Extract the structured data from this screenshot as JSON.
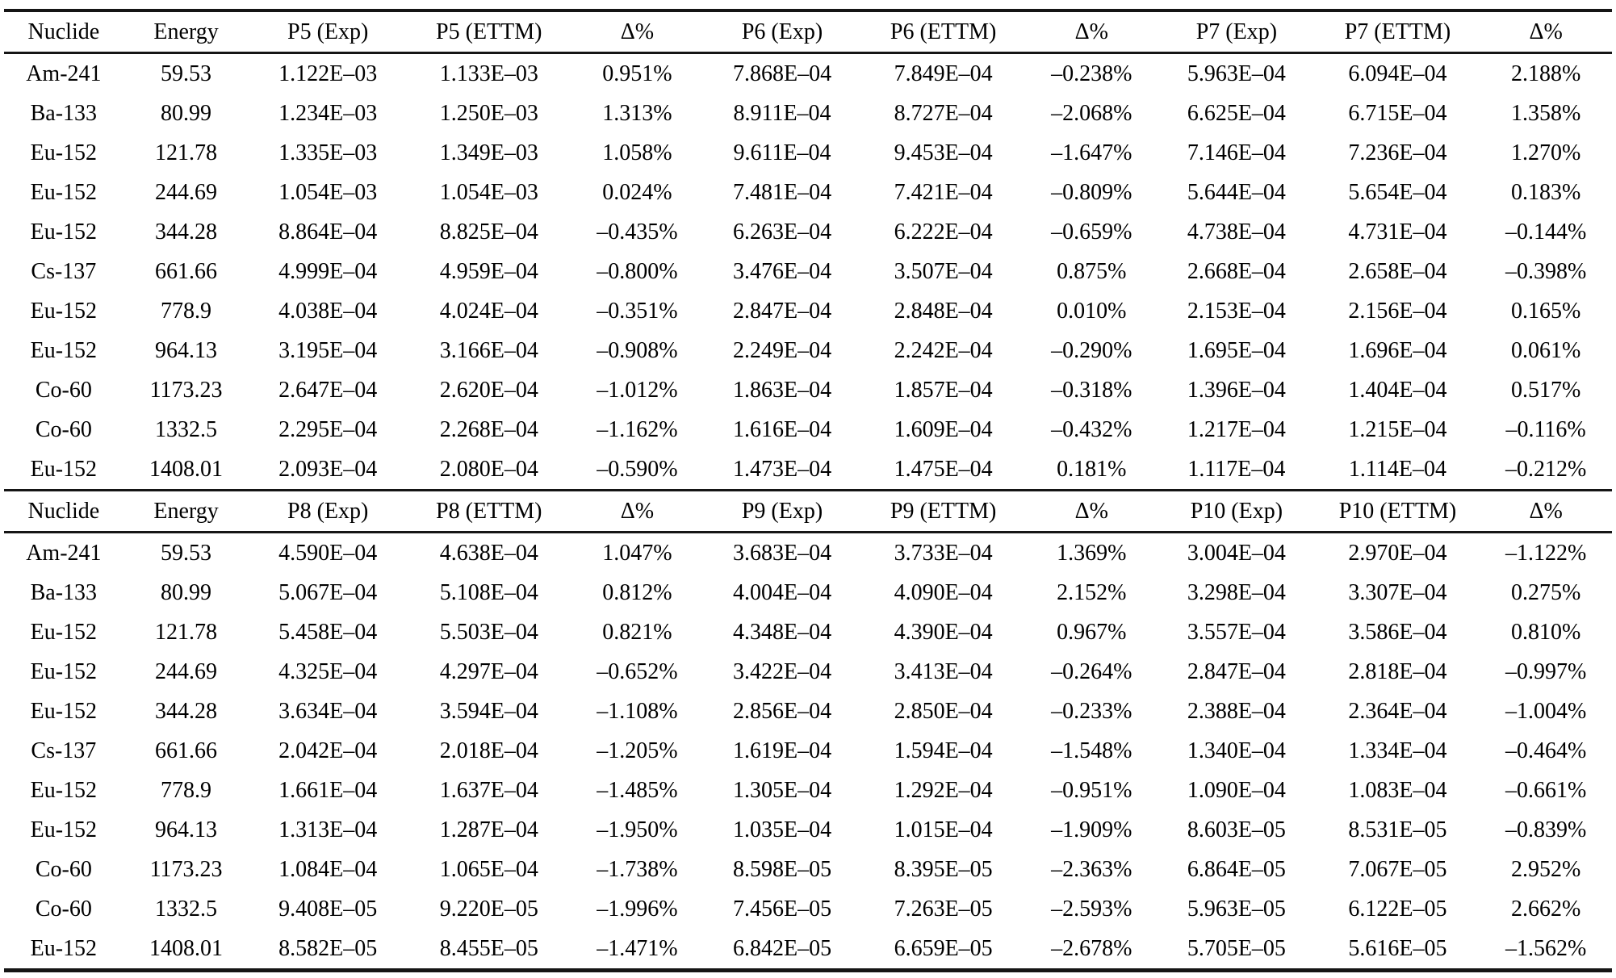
{
  "table": {
    "description": "Detection efficiency comparison table: experimental (Exp) vs ETTM values with percent deviation for positions P5-P10",
    "sections": [
      {
        "headers": [
          "Nuclide",
          "Energy",
          "P5 (Exp)",
          "P5 (ETTM)",
          "Δ%",
          "P6 (Exp)",
          "P6 (ETTM)",
          "Δ%",
          "P7 (Exp)",
          "P7 (ETTM)",
          "Δ%"
        ],
        "rows": [
          [
            "Am-241",
            "59.53",
            "1.122E–03",
            "1.133E–03",
            "0.951%",
            "7.868E–04",
            "7.849E–04",
            "–0.238%",
            "5.963E–04",
            "6.094E–04",
            "2.188%"
          ],
          [
            "Ba-133",
            "80.99",
            "1.234E–03",
            "1.250E–03",
            "1.313%",
            "8.911E–04",
            "8.727E–04",
            "–2.068%",
            "6.625E–04",
            "6.715E–04",
            "1.358%"
          ],
          [
            "Eu-152",
            "121.78",
            "1.335E–03",
            "1.349E–03",
            "1.058%",
            "9.611E–04",
            "9.453E–04",
            "–1.647%",
            "7.146E–04",
            "7.236E–04",
            "1.270%"
          ],
          [
            "Eu-152",
            "244.69",
            "1.054E–03",
            "1.054E–03",
            "0.024%",
            "7.481E–04",
            "7.421E–04",
            "–0.809%",
            "5.644E–04",
            "5.654E–04",
            "0.183%"
          ],
          [
            "Eu-152",
            "344.28",
            "8.864E–04",
            "8.825E–04",
            "–0.435%",
            "6.263E–04",
            "6.222E–04",
            "–0.659%",
            "4.738E–04",
            "4.731E–04",
            "–0.144%"
          ],
          [
            "Cs-137",
            "661.66",
            "4.999E–04",
            "4.959E–04",
            "–0.800%",
            "3.476E–04",
            "3.507E–04",
            "0.875%",
            "2.668E–04",
            "2.658E–04",
            "–0.398%"
          ],
          [
            "Eu-152",
            "778.9",
            "4.038E–04",
            "4.024E–04",
            "–0.351%",
            "2.847E–04",
            "2.848E–04",
            "0.010%",
            "2.153E–04",
            "2.156E–04",
            "0.165%"
          ],
          [
            "Eu-152",
            "964.13",
            "3.195E–04",
            "3.166E–04",
            "–0.908%",
            "2.249E–04",
            "2.242E–04",
            "–0.290%",
            "1.695E–04",
            "1.696E–04",
            "0.061%"
          ],
          [
            "Co-60",
            "1173.23",
            "2.647E–04",
            "2.620E–04",
            "–1.012%",
            "1.863E–04",
            "1.857E–04",
            "–0.318%",
            "1.396E–04",
            "1.404E–04",
            "0.517%"
          ],
          [
            "Co-60",
            "1332.5",
            "2.295E–04",
            "2.268E–04",
            "–1.162%",
            "1.616E–04",
            "1.609E–04",
            "–0.432%",
            "1.217E–04",
            "1.215E–04",
            "–0.116%"
          ],
          [
            "Eu-152",
            "1408.01",
            "2.093E–04",
            "2.080E–04",
            "–0.590%",
            "1.473E–04",
            "1.475E–04",
            "0.181%",
            "1.117E–04",
            "1.114E–04",
            "–0.212%"
          ]
        ]
      },
      {
        "headers": [
          "Nuclide",
          "Energy",
          "P8 (Exp)",
          "P8 (ETTM)",
          "Δ%",
          "P9 (Exp)",
          "P9 (ETTM)",
          "Δ%",
          "P10 (Exp)",
          "P10 (ETTM)",
          "Δ%"
        ],
        "rows": [
          [
            "Am-241",
            "59.53",
            "4.590E–04",
            "4.638E–04",
            "1.047%",
            "3.683E–04",
            "3.733E–04",
            "1.369%",
            "3.004E–04",
            "2.970E–04",
            "–1.122%"
          ],
          [
            "Ba-133",
            "80.99",
            "5.067E–04",
            "5.108E–04",
            "0.812%",
            "4.004E–04",
            "4.090E–04",
            "2.152%",
            "3.298E–04",
            "3.307E–04",
            "0.275%"
          ],
          [
            "Eu-152",
            "121.78",
            "5.458E–04",
            "5.503E–04",
            "0.821%",
            "4.348E–04",
            "4.390E–04",
            "0.967%",
            "3.557E–04",
            "3.586E–04",
            "0.810%"
          ],
          [
            "Eu-152",
            "244.69",
            "4.325E–04",
            "4.297E–04",
            "–0.652%",
            "3.422E–04",
            "3.413E–04",
            "–0.264%",
            "2.847E–04",
            "2.818E–04",
            "–0.997%"
          ],
          [
            "Eu-152",
            "344.28",
            "3.634E–04",
            "3.594E–04",
            "–1.108%",
            "2.856E–04",
            "2.850E–04",
            "–0.233%",
            "2.388E–04",
            "2.364E–04",
            "–1.004%"
          ],
          [
            "Cs-137",
            "661.66",
            "2.042E–04",
            "2.018E–04",
            "–1.205%",
            "1.619E–04",
            "1.594E–04",
            "–1.548%",
            "1.340E–04",
            "1.334E–04",
            "–0.464%"
          ],
          [
            "Eu-152",
            "778.9",
            "1.661E–04",
            "1.637E–04",
            "–1.485%",
            "1.305E–04",
            "1.292E–04",
            "–0.951%",
            "1.090E–04",
            "1.083E–04",
            "–0.661%"
          ],
          [
            "Eu-152",
            "964.13",
            "1.313E–04",
            "1.287E–04",
            "–1.950%",
            "1.035E–04",
            "1.015E–04",
            "–1.909%",
            "8.603E–05",
            "8.531E–05",
            "–0.839%"
          ],
          [
            "Co-60",
            "1173.23",
            "1.084E–04",
            "1.065E–04",
            "–1.738%",
            "8.598E–05",
            "8.395E–05",
            "–2.363%",
            "6.864E–05",
            "7.067E–05",
            "2.952%"
          ],
          [
            "Co-60",
            "1332.5",
            "9.408E–05",
            "9.220E–05",
            "–1.996%",
            "7.456E–05",
            "7.263E–05",
            "–2.593%",
            "5.963E–05",
            "6.122E–05",
            "2.662%"
          ],
          [
            "Eu-152",
            "1408.01",
            "8.582E–05",
            "8.455E–05",
            "–1.471%",
            "6.842E–05",
            "6.659E–05",
            "–2.678%",
            "5.705E–05",
            "5.616E–05",
            "–1.562%"
          ]
        ]
      }
    ]
  }
}
